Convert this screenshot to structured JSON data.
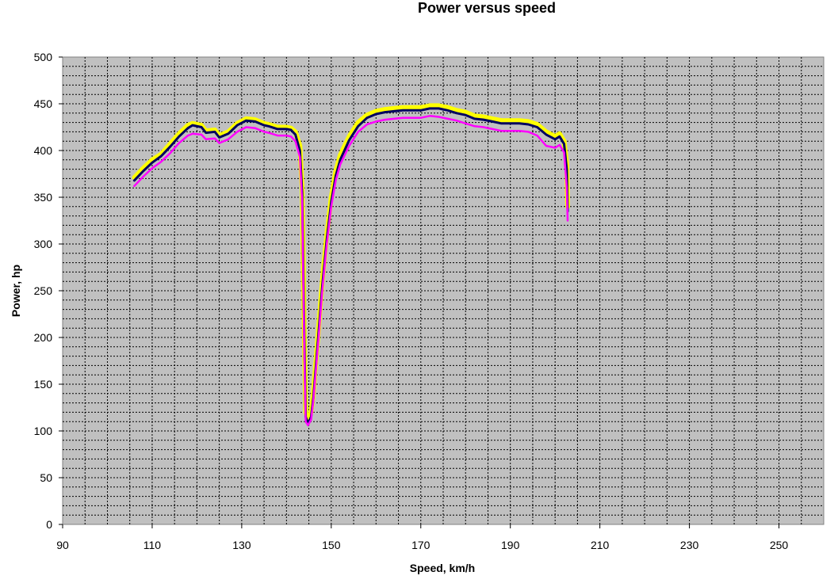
{
  "chart_data": {
    "type": "line",
    "title": "Power versus speed",
    "xlabel": "Speed, km/h",
    "ylabel": "Power, hp",
    "xlim": [
      90,
      260
    ],
    "ylim": [
      0,
      500
    ],
    "x_ticks": [
      90,
      110,
      130,
      150,
      170,
      190,
      210,
      230,
      250
    ],
    "y_ticks": [
      0,
      50,
      100,
      150,
      200,
      250,
      300,
      350,
      400,
      450,
      500
    ],
    "grid": true,
    "legend": "none",
    "plot_background": "#c0c0c0",
    "series": [
      {
        "color": "#ffff00",
        "points": [
          [
            106,
            371
          ],
          [
            108,
            381
          ],
          [
            110,
            390
          ],
          [
            112,
            396
          ],
          [
            114,
            407
          ],
          [
            116,
            418
          ],
          [
            118,
            427
          ],
          [
            119,
            429
          ],
          [
            121,
            427
          ],
          [
            122,
            421
          ],
          [
            124,
            422
          ],
          [
            125,
            416
          ],
          [
            127,
            420
          ],
          [
            129,
            429
          ],
          [
            131,
            434
          ],
          [
            133,
            433
          ],
          [
            135,
            429
          ],
          [
            136,
            428
          ],
          [
            138,
            425
          ],
          [
            140,
            425
          ],
          [
            141,
            424
          ],
          [
            142,
            420
          ],
          [
            143,
            405
          ],
          [
            143.5,
            360
          ],
          [
            144,
            200
          ],
          [
            144.3,
            120
          ],
          [
            144.8,
            112
          ],
          [
            145.5,
            120
          ],
          [
            146,
            140
          ],
          [
            147,
            200
          ],
          [
            148,
            260
          ],
          [
            149,
            310
          ],
          [
            150,
            350
          ],
          [
            151,
            378
          ],
          [
            152,
            395
          ],
          [
            154,
            415
          ],
          [
            156,
            430
          ],
          [
            158,
            438
          ],
          [
            160,
            442
          ],
          [
            162,
            444
          ],
          [
            164,
            445
          ],
          [
            166,
            446
          ],
          [
            168,
            446
          ],
          [
            170,
            446
          ],
          [
            172,
            448
          ],
          [
            174,
            448
          ],
          [
            176,
            446
          ],
          [
            178,
            443
          ],
          [
            180,
            441
          ],
          [
            182,
            437
          ],
          [
            184,
            436
          ],
          [
            186,
            434
          ],
          [
            188,
            432
          ],
          [
            190,
            432
          ],
          [
            192,
            432
          ],
          [
            194,
            431
          ],
          [
            196,
            428
          ],
          [
            198,
            420
          ],
          [
            200,
            415
          ],
          [
            201,
            418
          ],
          [
            202,
            410
          ],
          [
            202.6,
            385
          ],
          [
            202.8,
            340
          ]
        ]
      },
      {
        "color": "#000060",
        "points": [
          [
            106,
            368
          ],
          [
            108,
            378
          ],
          [
            110,
            387
          ],
          [
            112,
            394
          ],
          [
            114,
            404
          ],
          [
            116,
            415
          ],
          [
            118,
            424
          ],
          [
            119,
            427
          ],
          [
            121,
            425
          ],
          [
            122,
            419
          ],
          [
            124,
            420
          ],
          [
            125,
            414
          ],
          [
            127,
            418
          ],
          [
            129,
            427
          ],
          [
            131,
            432
          ],
          [
            133,
            431
          ],
          [
            135,
            427
          ],
          [
            136,
            426
          ],
          [
            138,
            423
          ],
          [
            140,
            423
          ],
          [
            141,
            422
          ],
          [
            142,
            417
          ],
          [
            143,
            400
          ],
          [
            143.5,
            355
          ],
          [
            144,
            195
          ],
          [
            144.3,
            115
          ],
          [
            144.8,
            108
          ],
          [
            145.5,
            115
          ],
          [
            146,
            135
          ],
          [
            147,
            195
          ],
          [
            148,
            255
          ],
          [
            149,
            305
          ],
          [
            150,
            345
          ],
          [
            151,
            373
          ],
          [
            152,
            390
          ],
          [
            154,
            411
          ],
          [
            156,
            426
          ],
          [
            158,
            435
          ],
          [
            160,
            439
          ],
          [
            162,
            441
          ],
          [
            164,
            442
          ],
          [
            166,
            443
          ],
          [
            168,
            443
          ],
          [
            170,
            443
          ],
          [
            172,
            445
          ],
          [
            174,
            445
          ],
          [
            176,
            443
          ],
          [
            178,
            440
          ],
          [
            180,
            438
          ],
          [
            182,
            434
          ],
          [
            184,
            433
          ],
          [
            186,
            431
          ],
          [
            188,
            429
          ],
          [
            190,
            429
          ],
          [
            192,
            429
          ],
          [
            194,
            428
          ],
          [
            196,
            425
          ],
          [
            198,
            417
          ],
          [
            200,
            412
          ],
          [
            201,
            415
          ],
          [
            202,
            407
          ],
          [
            202.6,
            380
          ],
          [
            202.8,
            335
          ]
        ]
      },
      {
        "color": "#ff00ff",
        "points": [
          [
            106,
            362
          ],
          [
            108,
            372
          ],
          [
            110,
            381
          ],
          [
            112,
            388
          ],
          [
            114,
            397
          ],
          [
            116,
            408
          ],
          [
            118,
            416
          ],
          [
            119,
            418
          ],
          [
            121,
            417
          ],
          [
            122,
            412
          ],
          [
            124,
            413
          ],
          [
            125,
            408
          ],
          [
            127,
            412
          ],
          [
            129,
            420
          ],
          [
            131,
            425
          ],
          [
            133,
            424
          ],
          [
            135,
            420
          ],
          [
            136,
            419
          ],
          [
            138,
            416
          ],
          [
            140,
            416
          ],
          [
            141,
            415
          ],
          [
            142,
            410
          ],
          [
            143,
            393
          ],
          [
            143.5,
            345
          ],
          [
            144,
            185
          ],
          [
            144.3,
            110
          ],
          [
            144.8,
            106
          ],
          [
            145.5,
            112
          ],
          [
            146,
            132
          ],
          [
            147,
            190
          ],
          [
            148,
            250
          ],
          [
            149,
            300
          ],
          [
            150,
            340
          ],
          [
            151,
            368
          ],
          [
            152,
            385
          ],
          [
            154,
            405
          ],
          [
            156,
            420
          ],
          [
            158,
            428
          ],
          [
            160,
            431
          ],
          [
            162,
            433
          ],
          [
            164,
            434
          ],
          [
            166,
            435
          ],
          [
            168,
            435
          ],
          [
            170,
            435
          ],
          [
            172,
            437
          ],
          [
            174,
            436
          ],
          [
            176,
            434
          ],
          [
            178,
            432
          ],
          [
            180,
            429
          ],
          [
            182,
            426
          ],
          [
            184,
            425
          ],
          [
            186,
            423
          ],
          [
            188,
            421
          ],
          [
            190,
            421
          ],
          [
            192,
            421
          ],
          [
            194,
            420
          ],
          [
            196,
            416
          ],
          [
            198,
            405
          ],
          [
            200,
            403
          ],
          [
            201,
            406
          ],
          [
            202,
            398
          ],
          [
            202.6,
            360
          ],
          [
            202.8,
            325
          ]
        ]
      }
    ]
  }
}
